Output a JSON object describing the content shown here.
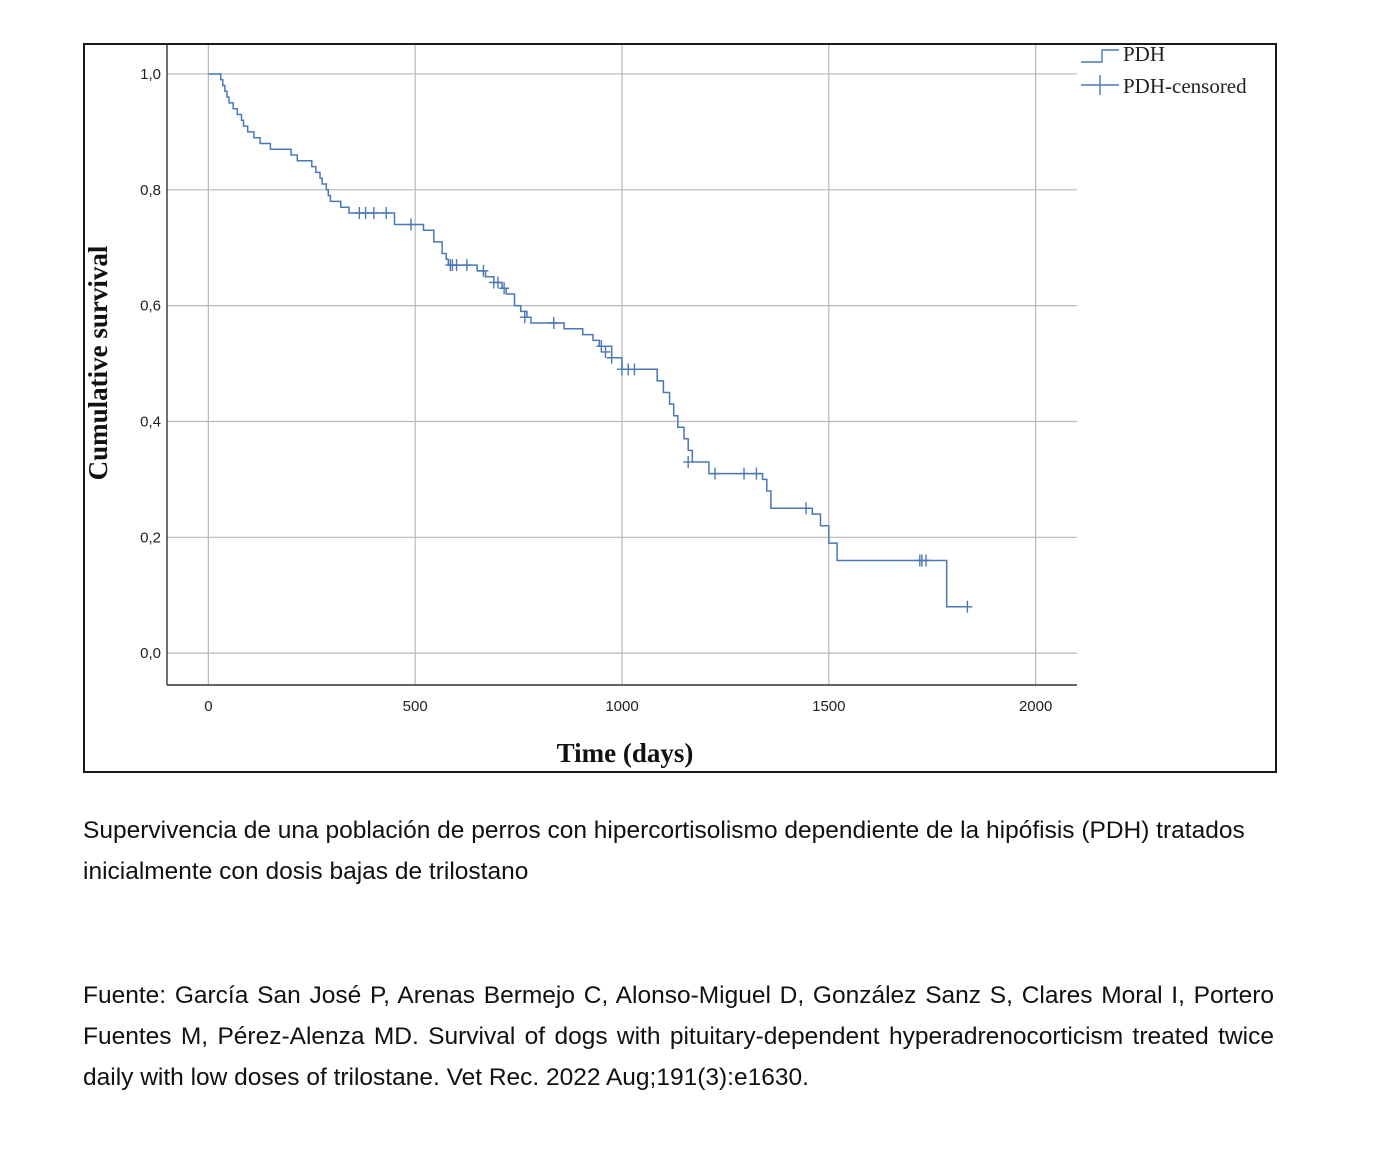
{
  "chart_data": {
    "type": "line",
    "subtype": "kaplan-meier step",
    "xlabel": "Time (days)",
    "ylabel": "Cumulative survival",
    "xlim": [
      -100,
      2100
    ],
    "ylim": [
      -0.055,
      1.05
    ],
    "x_ticks": [
      0,
      500,
      1000,
      1500,
      2000
    ],
    "x_tick_labels": [
      "0",
      "500",
      "1000",
      "1500",
      "2000"
    ],
    "y_ticks": [
      0,
      0.2,
      0.4,
      0.6,
      0.8,
      1.0
    ],
    "y_tick_labels": [
      "0,0",
      "0,2",
      "0,4",
      "0,6",
      "0,8",
      "1,0"
    ],
    "grid": true,
    "legend_position": "top-right",
    "colors": {
      "line": "#4a78b5",
      "grid": "#b8b8b8",
      "axis": "#333333"
    },
    "series": [
      {
        "name": "PDH",
        "step_points": [
          [
            0,
            1.0
          ],
          [
            25,
            1.0
          ],
          [
            30,
            0.99
          ],
          [
            35,
            0.98
          ],
          [
            40,
            0.97
          ],
          [
            45,
            0.96
          ],
          [
            50,
            0.95
          ],
          [
            60,
            0.94
          ],
          [
            70,
            0.93
          ],
          [
            80,
            0.92
          ],
          [
            85,
            0.91
          ],
          [
            95,
            0.9
          ],
          [
            110,
            0.89
          ],
          [
            125,
            0.88
          ],
          [
            150,
            0.87
          ],
          [
            200,
            0.86
          ],
          [
            215,
            0.85
          ],
          [
            250,
            0.84
          ],
          [
            260,
            0.83
          ],
          [
            270,
            0.82
          ],
          [
            275,
            0.81
          ],
          [
            285,
            0.8
          ],
          [
            290,
            0.79
          ],
          [
            295,
            0.78
          ],
          [
            320,
            0.77
          ],
          [
            340,
            0.76
          ],
          [
            450,
            0.74
          ],
          [
            520,
            0.73
          ],
          [
            545,
            0.71
          ],
          [
            565,
            0.69
          ],
          [
            575,
            0.68
          ],
          [
            580,
            0.67
          ],
          [
            650,
            0.66
          ],
          [
            670,
            0.65
          ],
          [
            690,
            0.64
          ],
          [
            710,
            0.63
          ],
          [
            720,
            0.62
          ],
          [
            740,
            0.6
          ],
          [
            755,
            0.59
          ],
          [
            770,
            0.58
          ],
          [
            780,
            0.57
          ],
          [
            860,
            0.56
          ],
          [
            905,
            0.55
          ],
          [
            930,
            0.54
          ],
          [
            945,
            0.53
          ],
          [
            975,
            0.51
          ],
          [
            1000,
            0.49
          ],
          [
            1085,
            0.47
          ],
          [
            1100,
            0.45
          ],
          [
            1115,
            0.43
          ],
          [
            1125,
            0.41
          ],
          [
            1135,
            0.39
          ],
          [
            1150,
            0.37
          ],
          [
            1160,
            0.35
          ],
          [
            1170,
            0.33
          ],
          [
            1210,
            0.31
          ],
          [
            1340,
            0.3
          ],
          [
            1350,
            0.28
          ],
          [
            1360,
            0.25
          ],
          [
            1460,
            0.24
          ],
          [
            1480,
            0.22
          ],
          [
            1500,
            0.19
          ],
          [
            1520,
            0.16
          ],
          [
            1785,
            0.08
          ],
          [
            1830,
            0.08
          ]
        ]
      },
      {
        "name": "PDH-censored",
        "points": [
          [
            365,
            0.76
          ],
          [
            380,
            0.76
          ],
          [
            400,
            0.76
          ],
          [
            430,
            0.76
          ],
          [
            490,
            0.74
          ],
          [
            585,
            0.67
          ],
          [
            590,
            0.67
          ],
          [
            600,
            0.67
          ],
          [
            625,
            0.67
          ],
          [
            665,
            0.66
          ],
          [
            690,
            0.64
          ],
          [
            700,
            0.64
          ],
          [
            715,
            0.63
          ],
          [
            765,
            0.58
          ],
          [
            835,
            0.57
          ],
          [
            950,
            0.53
          ],
          [
            960,
            0.52
          ],
          [
            975,
            0.51
          ],
          [
            1000,
            0.49
          ],
          [
            1015,
            0.49
          ],
          [
            1030,
            0.49
          ],
          [
            1160,
            0.33
          ],
          [
            1225,
            0.31
          ],
          [
            1295,
            0.31
          ],
          [
            1325,
            0.31
          ],
          [
            1445,
            0.25
          ],
          [
            1720,
            0.16
          ],
          [
            1725,
            0.16
          ],
          [
            1735,
            0.16
          ],
          [
            1835,
            0.08
          ]
        ]
      }
    ]
  },
  "caption": "Supervivencia de una población de perros con hipercortisolismo dependiente de la hipófisis (PDH) tratados inicialmente con dosis bajas de trilostano",
  "source": "Fuente: García San José P, Arenas Bermejo C, Alonso-Miguel D, González Sanz S, Clares Moral I, Portero Fuentes M, Pérez-Alenza MD. Survival of dogs with pituitary-dependent hyperadrenocorticism treated twice daily with low doses of trilostane. Vet Rec. 2022 Aug;191(3):e1630."
}
